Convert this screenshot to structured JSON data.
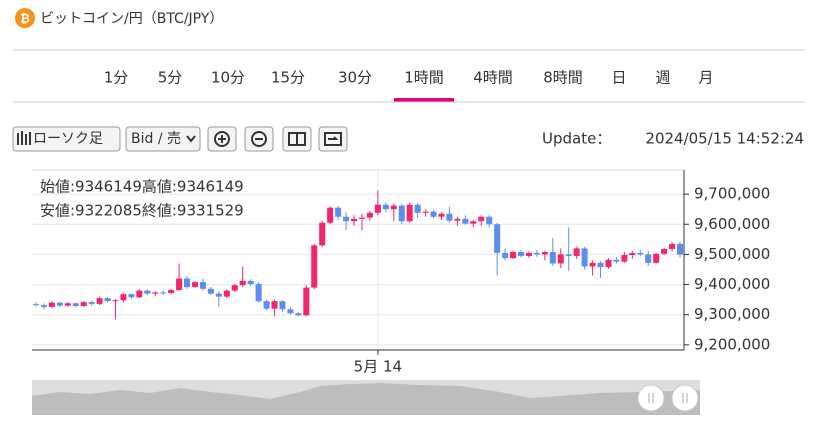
{
  "header": {
    "title": "ビットコイン/円（BTC/JPY）"
  },
  "tabs": {
    "items": [
      "1分",
      "5分",
      "10分",
      "15分",
      "30分",
      "1時間",
      "4時間",
      "8時間",
      "日",
      "週",
      "月"
    ],
    "active": 5
  },
  "toolbar": {
    "chart_type": "ローソク足",
    "price_side": "Bid / 売",
    "update_label": "Update：",
    "update_time": "2024/05/15 14:52:24"
  },
  "chart_data": {
    "type": "candlestick",
    "ohlc_info": [
      "始値:9346149高値:9346149",
      "安値:9322085終値:9331529"
    ],
    "up_color": "#f0276f",
    "down_color": "#5b8ef0",
    "categories": [
      null,
      null,
      null,
      null,
      null,
      null,
      null,
      null,
      null,
      null,
      null,
      null,
      null,
      null,
      null,
      null,
      null,
      null,
      null,
      null,
      null,
      null,
      null,
      null,
      null,
      null,
      null,
      null,
      null,
      null,
      null,
      null,
      null,
      null,
      null,
      null,
      null,
      null,
      null,
      null,
      null,
      null,
      null,
      "5月 14",
      null,
      null,
      null,
      null,
      null,
      null,
      null,
      null,
      null,
      null,
      null,
      null,
      null,
      null,
      null,
      null,
      null,
      null,
      null,
      null,
      null,
      null,
      null,
      null,
      null,
      null,
      null,
      null,
      null,
      null,
      null,
      null,
      null,
      null,
      null,
      null,
      null,
      null
    ],
    "open": [
      9335000,
      9332000,
      9326000,
      9340000,
      9330000,
      9338000,
      9329000,
      9342000,
      9336000,
      9355000,
      9345000,
      9348000,
      9368000,
      9358000,
      9380000,
      9370000,
      9374000,
      9372000,
      9382000,
      9420000,
      9392000,
      9408000,
      9386000,
      9370000,
      9360000,
      9380000,
      9398000,
      9412000,
      9402000,
      9345000,
      9320000,
      9345000,
      9318000,
      9305000,
      9298000,
      9390000,
      9530000,
      9605000,
      9655000,
      9625000,
      9610000,
      9618000,
      9622000,
      9638000,
      9665000,
      9650000,
      9662000,
      9610000,
      9665000,
      9638000,
      9642000,
      9625000,
      9635000,
      9612000,
      9618000,
      9602000,
      9610000,
      9625000,
      9600000,
      9505000,
      9488000,
      9508000,
      9495000,
      9505000,
      9500000,
      9508000,
      9470000,
      9500000,
      9495000,
      9520000,
      9460000,
      9472000,
      9458000,
      9482000,
      9476000,
      9498000,
      9505000,
      9500000,
      9472000,
      9502000,
      9518000,
      9535000
    ],
    "high": [
      9342000,
      9338000,
      9345000,
      9343000,
      9342000,
      9340000,
      9345000,
      9346000,
      9360000,
      9358000,
      9352000,
      9372000,
      9370000,
      9385000,
      9384000,
      9378000,
      9380000,
      9385000,
      9470000,
      9428000,
      9412000,
      9420000,
      9392000,
      9378000,
      9385000,
      9402000,
      9460000,
      9418000,
      9408000,
      9350000,
      9350000,
      9348000,
      9325000,
      9310000,
      9398000,
      9535000,
      9612000,
      9660000,
      9660000,
      9640000,
      9630000,
      9635000,
      9645000,
      9712000,
      9672000,
      9668000,
      9668000,
      9672000,
      9670000,
      9650000,
      9648000,
      9640000,
      9658000,
      9625000,
      9630000,
      9615000,
      9630000,
      9630000,
      9605000,
      9520000,
      9512000,
      9515000,
      9510000,
      9515000,
      9512000,
      9555000,
      9520000,
      9590000,
      9525000,
      9525000,
      9480000,
      9478000,
      9488000,
      9492000,
      9508000,
      9512000,
      9515000,
      9512000,
      9505000,
      9522000,
      9540000,
      9542000
    ],
    "low": [
      9328000,
      9318000,
      9322000,
      9325000,
      9326000,
      9324000,
      9326000,
      9330000,
      9332000,
      9340000,
      9285000,
      9340000,
      9352000,
      9355000,
      9365000,
      9362000,
      9366000,
      9368000,
      9378000,
      9385000,
      9388000,
      9380000,
      9365000,
      9325000,
      9355000,
      9376000,
      9392000,
      9395000,
      9340000,
      9315000,
      9295000,
      9310000,
      9300000,
      9295000,
      9295000,
      9385000,
      9525000,
      9600000,
      9615000,
      9580000,
      9595000,
      9580000,
      9612000,
      9630000,
      9640000,
      9610000,
      9600000,
      9605000,
      9620000,
      9625000,
      9620000,
      9615000,
      9605000,
      9595000,
      9598000,
      9590000,
      9595000,
      9590000,
      9430000,
      9480000,
      9484000,
      9490000,
      9488000,
      9492000,
      9480000,
      9462000,
      9455000,
      9445000,
      9485000,
      9450000,
      9430000,
      9422000,
      9452000,
      9470000,
      9472000,
      9485000,
      9494000,
      9462000,
      9470000,
      9498000,
      9510000,
      9490000
    ],
    "close": [
      9332000,
      9326000,
      9340000,
      9330000,
      9338000,
      9329000,
      9342000,
      9336000,
      9355000,
      9345000,
      9348000,
      9368000,
      9358000,
      9380000,
      9370000,
      9374000,
      9372000,
      9382000,
      9420000,
      9392000,
      9408000,
      9386000,
      9370000,
      9360000,
      9380000,
      9398000,
      9412000,
      9402000,
      9345000,
      9320000,
      9345000,
      9318000,
      9305000,
      9298000,
      9390000,
      9530000,
      9605000,
      9655000,
      9625000,
      9610000,
      9618000,
      9622000,
      9638000,
      9665000,
      9650000,
      9662000,
      9610000,
      9665000,
      9638000,
      9642000,
      9625000,
      9635000,
      9612000,
      9618000,
      9602000,
      9610000,
      9625000,
      9600000,
      9505000,
      9488000,
      9508000,
      9495000,
      9505000,
      9500000,
      9508000,
      9470000,
      9500000,
      9495000,
      9520000,
      9460000,
      9472000,
      9458000,
      9482000,
      9476000,
      9498000,
      9505000,
      9500000,
      9472000,
      9502000,
      9518000,
      9535000,
      9500000
    ],
    "ylim": [
      9183000,
      9780000
    ],
    "yticks": [
      {
        "value": 9200000,
        "label": "9,200,000"
      },
      {
        "value": 9300000,
        "label": "9,300,000"
      },
      {
        "value": 9400000,
        "label": "9,400,000"
      },
      {
        "value": 9500000,
        "label": "9,500,000"
      },
      {
        "value": 9600000,
        "label": "9,600,000"
      },
      {
        "value": 9700000,
        "label": "9,700,000"
      }
    ],
    "grid": true
  }
}
